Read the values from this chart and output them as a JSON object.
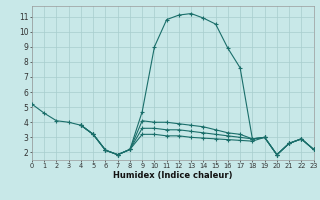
{
  "xlabel": "Humidex (Indice chaleur)",
  "bg_color": "#c8e8e8",
  "line_color": "#1a6e6a",
  "grid_color": "#a8cece",
  "xlim": [
    0,
    23
  ],
  "ylim": [
    1.5,
    11.7
  ],
  "xticks": [
    0,
    1,
    2,
    3,
    4,
    5,
    6,
    7,
    8,
    9,
    10,
    11,
    12,
    13,
    14,
    15,
    16,
    17,
    18,
    19,
    20,
    21,
    22,
    23
  ],
  "yticks": [
    2,
    3,
    4,
    5,
    6,
    7,
    8,
    9,
    10,
    11
  ],
  "series": [
    {
      "x": [
        0,
        1,
        2,
        3,
        4,
        5,
        6,
        7,
        8,
        9,
        10,
        11,
        12,
        13,
        14,
        15,
        16,
        17,
        18,
        19,
        20,
        21,
        22,
        23
      ],
      "y": [
        5.2,
        4.6,
        4.1,
        4.0,
        3.8,
        3.2,
        2.15,
        1.85,
        2.2,
        4.7,
        9.0,
        10.8,
        11.1,
        11.2,
        10.9,
        10.5,
        8.9,
        7.6,
        2.9,
        3.0,
        1.85,
        2.6,
        2.9,
        2.2
      ]
    },
    {
      "x": [
        4,
        5,
        6,
        7,
        8,
        9,
        10,
        11,
        12,
        13,
        14,
        15,
        16,
        17,
        18,
        19,
        20,
        21,
        22,
        23
      ],
      "y": [
        3.8,
        3.2,
        2.15,
        1.85,
        2.2,
        4.1,
        4.0,
        4.0,
        3.9,
        3.8,
        3.7,
        3.5,
        3.3,
        3.2,
        2.9,
        3.0,
        1.85,
        2.6,
        2.9,
        2.2
      ]
    },
    {
      "x": [
        4,
        5,
        6,
        7,
        8,
        9,
        10,
        11,
        12,
        13,
        14,
        15,
        16,
        17,
        18,
        19,
        20,
        21,
        22,
        23
      ],
      "y": [
        3.8,
        3.2,
        2.15,
        1.85,
        2.2,
        3.6,
        3.6,
        3.5,
        3.5,
        3.4,
        3.3,
        3.2,
        3.1,
        3.0,
        2.9,
        3.0,
        1.85,
        2.6,
        2.9,
        2.2
      ]
    },
    {
      "x": [
        4,
        5,
        6,
        7,
        8,
        9,
        10,
        11,
        12,
        13,
        14,
        15,
        16,
        17,
        18,
        19,
        20,
        21,
        22,
        23
      ],
      "y": [
        3.8,
        3.2,
        2.15,
        1.85,
        2.2,
        3.2,
        3.2,
        3.1,
        3.1,
        3.0,
        2.95,
        2.9,
        2.85,
        2.8,
        2.75,
        3.0,
        1.85,
        2.6,
        2.9,
        2.2
      ]
    }
  ]
}
